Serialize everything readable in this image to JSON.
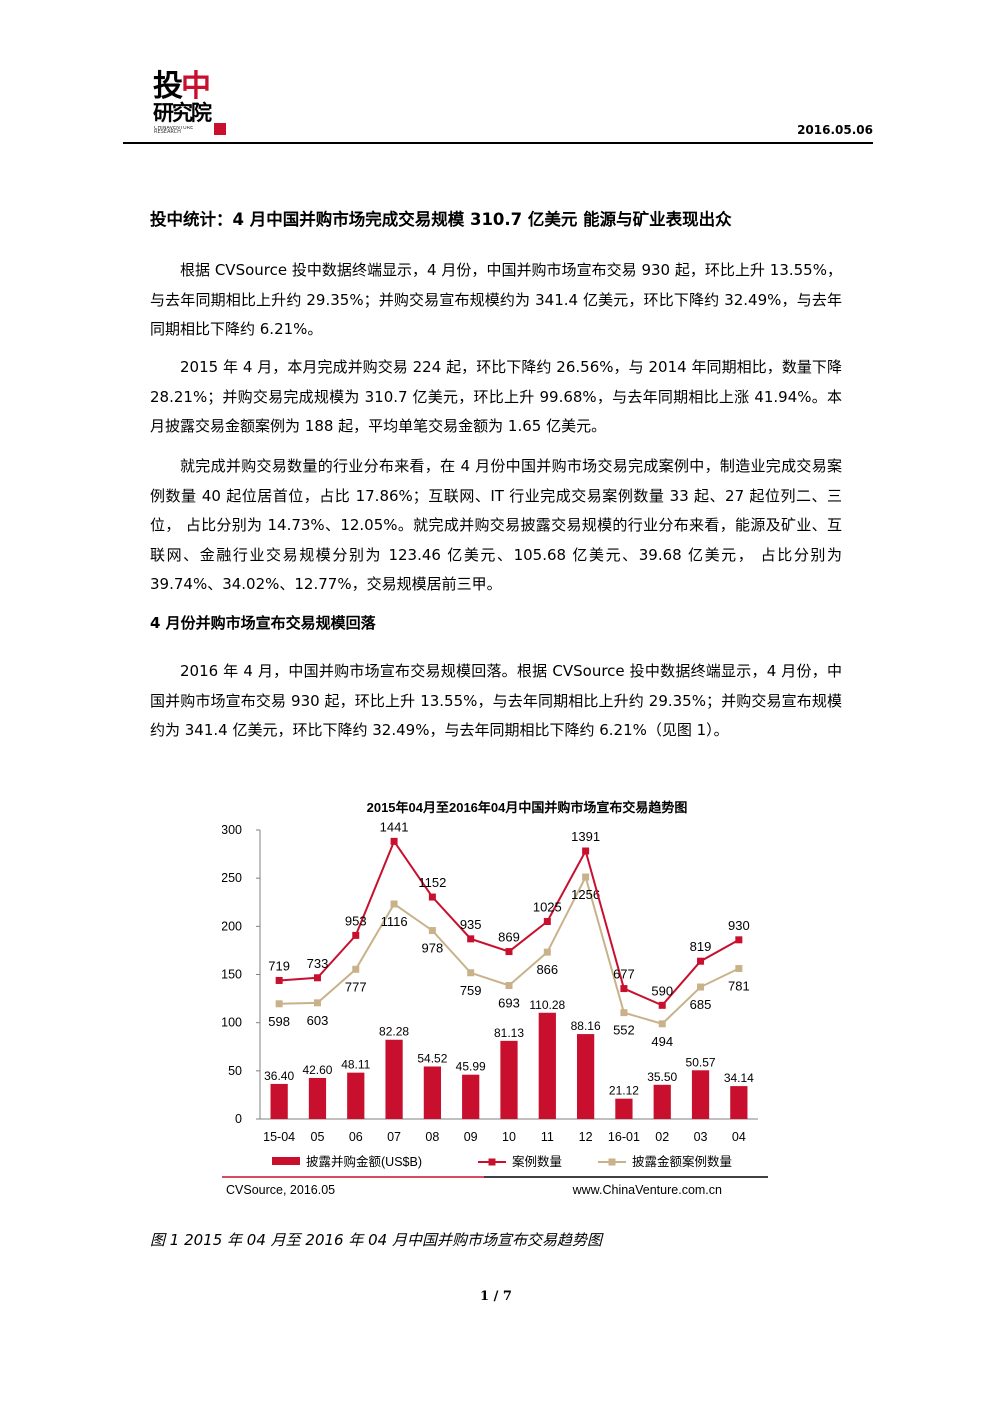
{
  "header": {
    "logo_line1_a": "投",
    "logo_line1_b": "中",
    "logo_line2": "研究院",
    "logo_line3": "CHINAVENTURE RESEARCH",
    "date": "2016.05.06"
  },
  "title": "投中统计：4 月中国并购市场完成交易规模 310.7 亿美元  能源与矿业表现出众",
  "paragraphs": [
    "根据 CVSource 投中数据终端显示，4 月份，中国并购市场宣布交易 930 起，环比上升 13.55%，与去年同期相比上升约 29.35%；并购交易宣布规模约为 341.4 亿美元，环比下降约 32.49%，与去年同期相比下降约 6.21%。",
    "2015 年 4 月，本月完成并购交易 224 起，环比下降约 26.56%，与 2014 年同期相比，数量下降 28.21%；并购交易完成规模为 310.7 亿美元，环比上升 99.68%，与去年同期相比上涨 41.94%。本月披露交易金额案例为 188 起，平均单笔交易金额为 1.65 亿美元。",
    "就完成并购交易数量的行业分布来看，在 4 月份中国并购市场交易完成案例中，制造业完成交易案例数量 40 起位居首位，占比 17.86%；互联网、IT 行业完成交易案例数量 33 起、27 起位列二、三位， 占比分别为 14.73%、12.05%。就完成并购交易披露交易规模的行业分布来看，能源及矿业、互联网、金融行业交易规模分别为 123.46 亿美元、105.68 亿美元、39.68 亿美元， 占比分别为 39.74%、34.02%、12.77%，交易规模居前三甲。"
  ],
  "section_heading": "4 月份并购市场宣布交易规模回落",
  "section_paragraph": "2016 年 4 月，中国并购市场宣布交易规模回落。根据 CVSource 投中数据终端显示，4 月份，中国并购市场宣布交易 930 起，环比上升 13.55%，与去年同期相比上升约 29.35%；并购交易宣布规模约为 341.4 亿美元，环比下降约 32.49%，与去年同期相比下降约 6.21%（见图 1）。",
  "chart_data": {
    "type": "bar",
    "title": "2015年04月至2016年04月中国并购市场宣布交易趋势图",
    "categories": [
      "15-04",
      "05",
      "06",
      "07",
      "08",
      "09",
      "10",
      "11",
      "12",
      "16-01",
      "02",
      "03",
      "04"
    ],
    "ylim": [
      0,
      300
    ],
    "yticks": [
      0,
      50,
      100,
      150,
      200,
      250,
      300
    ],
    "series": [
      {
        "name": "披露并购金额(US$B)",
        "type": "bar",
        "color": "#c8102e",
        "values": [
          36.4,
          42.6,
          48.11,
          82.28,
          54.52,
          45.99,
          81.13,
          110.28,
          88.16,
          21.12,
          35.5,
          50.57,
          34.14
        ],
        "labels": [
          "36.40",
          "42.60",
          "48.11",
          "82.28",
          "54.52",
          "45.99",
          "81.13",
          "110.28",
          "88.16",
          "21.12",
          "35.50",
          "50.57",
          "34.14"
        ]
      },
      {
        "name": "案例数量",
        "type": "line",
        "color": "#c8102e",
        "values": [
          719,
          733,
          953,
          1441,
          1152,
          935,
          869,
          1025,
          1391,
          677,
          590,
          819,
          930
        ]
      },
      {
        "name": "披露金额案例数量",
        "type": "line",
        "color": "#c9b28a",
        "values": [
          598,
          603,
          777,
          1116,
          978,
          759,
          693,
          866,
          1256,
          552,
          494,
          685,
          781
        ]
      }
    ],
    "legend_position": "bottom",
    "grid": false,
    "source": "CVSource, 2016.05",
    "website": "www.ChinaVenture.com.cn"
  },
  "caption": "图 1 2015 年 04 月至 2016 年 04 月中国并购市场宣布交易趋势图",
  "page_number": "1 / 7"
}
